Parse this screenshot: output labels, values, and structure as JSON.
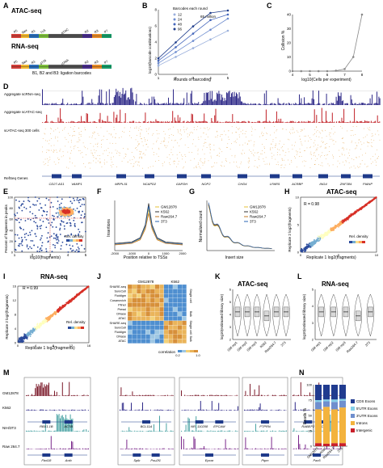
{
  "panels": {
    "A": {
      "letter": "A",
      "atac_title": "ATAC-seq",
      "rna_title": "RNA-seq",
      "atac_segments": [
        "P5",
        "Nex",
        "R1",
        "Tn5",
        "ATAC",
        "R2",
        "R3",
        "P7"
      ],
      "rna_segments": [
        "P5",
        "Nex",
        "R1",
        "dT/N",
        "cDNA",
        "R2",
        "R3",
        "P7"
      ],
      "footnote": "B1, B2 and B3: ligation barcodes"
    },
    "B": {
      "letter": "B",
      "legend_title": "Barcodes each round",
      "annotation": "65 million",
      "xlabel": "Rounds of barcoding",
      "ylabel": "log10(barcode combinations)",
      "chart_data": {
        "type": "line",
        "x": [
          1,
          2,
          3,
          4,
          5
        ],
        "xlim": [
          1,
          5
        ],
        "ylim": [
          0,
          8
        ],
        "xticks": [
          "1",
          "2",
          "3",
          "4",
          "5"
        ],
        "yticks": [
          "0",
          "2",
          "4",
          "6",
          "8"
        ],
        "series": [
          {
            "name": "12",
            "values": [
              1.08,
              2.16,
              3.24,
              4.32,
              5.4
            ],
            "color": "#9ab0dc"
          },
          {
            "name": "24",
            "values": [
              1.38,
              2.76,
              4.14,
              5.52,
              6.9
            ],
            "color": "#6d8ccf"
          },
          {
            "name": "48",
            "values": [
              1.68,
              3.36,
              5.04,
              6.72,
              7.4
            ],
            "color": "#4466bb"
          },
          {
            "name": "96",
            "values": [
              1.98,
              3.96,
              5.94,
              7.6,
              7.9
            ],
            "color": "#1f3d8c"
          }
        ]
      }
    },
    "C": {
      "letter": "C",
      "xlabel": "log10(Cells per experiment)",
      "ylabel": "Collision %",
      "chart_data": {
        "type": "line",
        "x": [
          4.0,
          4.5,
          5.0,
          5.5,
          6.0,
          6.5,
          7.0,
          7.5,
          8.0
        ],
        "values": [
          0,
          0,
          0,
          0,
          0,
          0.3,
          1.5,
          10,
          40
        ],
        "xlim": [
          4,
          8
        ],
        "ylim": [
          0,
          40
        ],
        "xticks": [
          "4",
          "5",
          "6",
          "7",
          "8"
        ],
        "yticks": [
          "0",
          "10",
          "20",
          "30",
          "40"
        ]
      }
    },
    "D": {
      "letter": "D",
      "track_labels": [
        "Aggregate scRNA-seq",
        "Aggregate scATAC-seq",
        "scATAC-seq 300 cells",
        "RefSeq Genes"
      ],
      "genes": [
        "CD27-AS1",
        "VAMP1",
        "MRPL51",
        "NCAPD2",
        "GAPDH",
        "NOP2",
        "CHD4",
        "LPAR5",
        "ACRBP",
        "ING4",
        "ZNF384",
        "PIANP"
      ]
    },
    "E": {
      "letter": "E",
      "xlabel": "log10(fragments)",
      "ylabel": "Percent of fragments in peaks",
      "colorbar": "Rel. density",
      "xticks": [
        "1",
        "2",
        "3",
        "4",
        "5"
      ],
      "yticks": [
        "0",
        "20",
        "40",
        "60",
        "80",
        "100"
      ]
    },
    "F": {
      "letter": "F",
      "xlabel": "Position relative to TSSs",
      "ylabel": "Insertions",
      "xticks": [
        "-2000",
        "-1000",
        "0",
        "1000",
        "2000"
      ],
      "legend": [
        "GM12878",
        "K562",
        "Raw264.7",
        "3T3"
      ],
      "chart_data": {
        "type": "line",
        "x": [
          -2000,
          -1000,
          -500,
          -200,
          0,
          200,
          500,
          1000,
          2000
        ],
        "series": [
          {
            "name": "GM12878",
            "values": [
              0.9,
              1.1,
              1.6,
              3.2,
              5.8,
              3.2,
              1.6,
              1.1,
              0.9
            ],
            "color": "#e6c23a"
          },
          {
            "name": "K562",
            "values": [
              1.0,
              1.2,
              1.8,
              3.6,
              6.6,
              3.6,
              1.8,
              1.2,
              1.0
            ],
            "color": "#333333"
          },
          {
            "name": "Raw264.7",
            "values": [
              0.8,
              1.0,
              1.5,
              3.0,
              5.2,
              3.0,
              1.5,
              1.0,
              0.8
            ],
            "color": "#c67b25"
          },
          {
            "name": "3T3",
            "values": [
              0.9,
              1.1,
              1.7,
              3.4,
              6.2,
              3.4,
              1.7,
              1.1,
              0.9
            ],
            "color": "#2a66b5"
          }
        ]
      }
    },
    "G": {
      "letter": "G",
      "xlabel": "Insert size",
      "ylabel": "Normalized count",
      "legend": [
        "GM12878",
        "K562",
        "Raw264.7",
        "3T3"
      ]
    },
    "H": {
      "letter": "H",
      "title": "ATAC-seq",
      "r_label": "R = 0.98",
      "xlabel": "Replicate 1 log2(fragments)",
      "ylabel": "Replicate 2 log2(fragments)",
      "colorbar": "Rel. density",
      "xticks": [
        "0",
        "5",
        "10"
      ],
      "yticks": [
        "0",
        "5",
        "10"
      ]
    },
    "I": {
      "letter": "I",
      "title": "RNA-seq",
      "r_label": "R = 0.99",
      "xlabel": "Replicate 1 log2(fragments)",
      "ylabel": "Replicate 2 log2(fragments)",
      "colorbar": "Rel. density",
      "xticks": [
        "0",
        "4",
        "8",
        "12",
        "16"
      ],
      "yticks": [
        "0",
        "4",
        "8",
        "12",
        "16"
      ]
    },
    "J": {
      "letter": "J",
      "col_groups": [
        "GM12878",
        "K562"
      ],
      "row_labels": [
        "SHARE-seq",
        "SureCell",
        "Fluidigm",
        "Cusanovich",
        "Pliner",
        "Pressl",
        "DNase",
        "ATAC",
        "SHARE-seq",
        "SureCell",
        "Fluidigm",
        "DNase",
        "ATAC"
      ],
      "side_labels": [
        "Single cell",
        "Bulk",
        "Single cell",
        "Bulk"
      ],
      "colorbar": "correlation",
      "colorbar_ticks": [
        "0.2",
        "1.0"
      ]
    },
    "K": {
      "letter": "K",
      "title": "ATAC-seq",
      "ylabel": "log10(estimated library size)",
      "categories": [
        "GM rep1",
        "GM rep2",
        "GM rep3",
        "K562",
        "Raw264.7",
        "3T3"
      ],
      "yticks": [
        "2",
        "3",
        "4",
        "5",
        "6"
      ]
    },
    "L": {
      "letter": "L",
      "title": "RNA-seq",
      "ylabel": "log10(estimated library size)",
      "categories": [
        "GM rep1",
        "GM rep2",
        "GM rep3",
        "Raw264.7",
        "3T3"
      ],
      "yticks": [
        "2",
        "3",
        "4",
        "5"
      ]
    },
    "M": {
      "letter": "M",
      "row_labels": [
        "GM12878",
        "K562",
        "NIH/3T3",
        "Raw 264.7"
      ],
      "genes": [
        [
          "RBX1.1B",
          "ACTB"
        ],
        [
          "BCL11A"
        ],
        [
          "NR_110208",
          "EPCAM"
        ],
        [
          "PTPRN"
        ],
        [
          "RABEP2",
          "CD19"
        ]
      ],
      "mouse_genes": [
        [
          "Fbxl18",
          "Actb"
        ],
        [
          "Spib",
          "Pou2f1"
        ],
        [
          "Epcar"
        ],
        [
          "Ptprc"
        ],
        [
          "Pax5"
        ]
      ]
    },
    "N": {
      "letter": "N",
      "ylabel": "Reads %",
      "yticks": [
        "0",
        "25",
        "50",
        "75",
        "100"
      ],
      "legend": [
        "CDS Exons",
        "5'UTR Exons",
        "3'UTR Exons",
        "Introns",
        "Intergenic"
      ],
      "chart_data": {
        "type": "bar",
        "categories": [
          "GM12878",
          "K562",
          "Raw264.7",
          "3T3"
        ],
        "series": [
          {
            "name": "Intergenic",
            "values": [
              5,
              4,
              5,
              5
            ],
            "color": "#c9202b"
          },
          {
            "name": "Introns",
            "values": [
              55,
              60,
              55,
              58
            ],
            "color": "#f3b33d"
          },
          {
            "name": "3'UTR Exons",
            "values": [
              12,
              9,
              12,
              11
            ],
            "color": "#6f8fce"
          },
          {
            "name": "5'UTR Exons",
            "values": [
              3,
              3,
              4,
              3
            ],
            "color": "#85d0e8"
          },
          {
            "name": "CDS Exons",
            "values": [
              25,
              24,
              24,
              23
            ],
            "color": "#203b8f"
          }
        ]
      }
    }
  }
}
